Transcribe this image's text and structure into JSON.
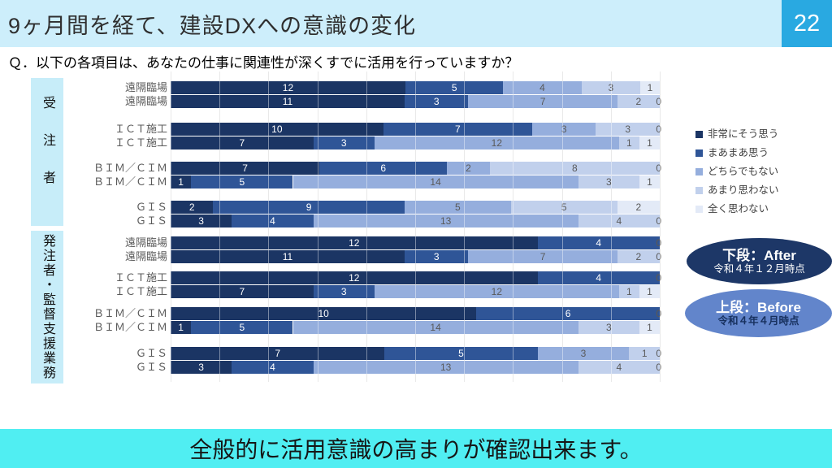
{
  "header": {
    "title": "9ヶ月間を経て、建設DXへの意識の変化",
    "page_number": "22"
  },
  "question": "Ｑ．以下の各項目は、あなたの仕事に関連性が深くすでに活用を行っていますか？",
  "chart_data": {
    "type": "bar",
    "variant": "100-percent-stacked-horizontal",
    "x_axis": {
      "min_percent": 0,
      "max_percent": 100,
      "gridline_percent_step": 10,
      "grid": true
    },
    "legend_position": "right",
    "legend": [
      {
        "label": "非常にそう思う",
        "color": "#1b3564"
      },
      {
        "label": "まあまあ思う",
        "color": "#2f5597"
      },
      {
        "label": "どちらでもない",
        "color": "#95aedd"
      },
      {
        "label": "あまり思わない",
        "color": "#c1d0ec"
      },
      {
        "label": "全く思わない",
        "color": "#e3eaf7"
      }
    ],
    "row_note": "各カテゴリは2段組：上段・下段（右側の楕円注記を参照）",
    "sections": [
      {
        "label": "受注者",
        "groups": [
          {
            "category": "遠隔臨場",
            "rows": {
              "upper": [
                12,
                5,
                4,
                3,
                1
              ],
              "lower": [
                11,
                3,
                7,
                2,
                0
              ]
            }
          },
          {
            "category": "ＩＣＴ施工",
            "rows": {
              "upper": [
                10,
                7,
                3,
                3,
                0
              ],
              "lower": [
                7,
                3,
                12,
                1,
                1
              ]
            }
          },
          {
            "category": "ＢＩＭ／ＣＩＭ",
            "rows": {
              "upper": [
                7,
                6,
                2,
                8,
                0
              ],
              "lower": [
                1,
                5,
                14,
                3,
                1
              ]
            }
          },
          {
            "category": "ＧＩＳ",
            "rows": {
              "upper": [
                2,
                9,
                5,
                5,
                2
              ],
              "lower": [
                3,
                4,
                13,
                4,
                0
              ]
            }
          }
        ]
      },
      {
        "label": "発注者・監督支援業務",
        "groups": [
          {
            "category": "遠隔臨場",
            "rows": {
              "upper": [
                12,
                4,
                0,
                0,
                0
              ],
              "lower": [
                11,
                3,
                7,
                2,
                0
              ]
            }
          },
          {
            "category": "ＩＣＴ施工",
            "rows": {
              "upper": [
                12,
                4,
                0,
                0,
                0
              ],
              "lower": [
                7,
                3,
                12,
                1,
                1
              ]
            }
          },
          {
            "category": "ＢＩＭ／ＣＩＭ",
            "rows": {
              "upper": [
                10,
                6,
                0,
                0,
                0
              ],
              "lower": [
                1,
                5,
                14,
                3,
                1
              ]
            }
          },
          {
            "category": "ＧＩＳ",
            "rows": {
              "upper": [
                7,
                5,
                3,
                1,
                0
              ],
              "lower": [
                3,
                4,
                13,
                4,
                0
              ]
            }
          }
        ]
      }
    ]
  },
  "annotations": {
    "after": {
      "line1": "下段：After",
      "line2": "令和４年１２月時点",
      "bg_color": "#1d3767"
    },
    "before": {
      "line1": "上段：Before",
      "line2": "令和４年４月時点",
      "bg_color": "#6285cb"
    }
  },
  "footer": {
    "message": "全般的に活用意識の高まりが確認出来ます。"
  },
  "colors": {
    "header_bg": "#cdeefb",
    "page_badge_bg": "#29a9e1",
    "section_box_bg": "#c7edf9",
    "footer_bg": "#50eef2"
  }
}
